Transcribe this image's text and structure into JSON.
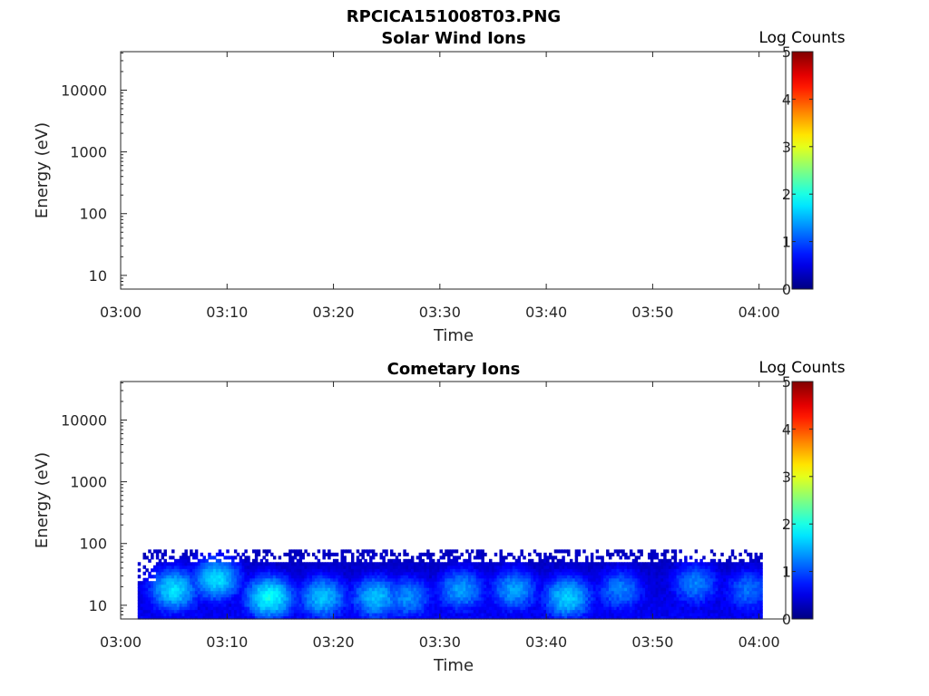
{
  "figure_title": "RPCICA151008T03.PNG",
  "chart_data": [
    {
      "type": "heatmap",
      "title": "Solar Wind Ions",
      "xlabel": "Time",
      "ylabel": "Energy (eV)",
      "y_scale": "log",
      "ylim_eV": [
        6,
        42000
      ],
      "x_ticks": [
        "03:00",
        "03:10",
        "03:20",
        "03:30",
        "03:40",
        "03:50",
        "04:00"
      ],
      "y_ticks": [
        10,
        100,
        1000,
        10000
      ],
      "y_tick_labels": [
        "10",
        "100",
        "1000",
        "10000"
      ],
      "xlim_minutes": [
        0,
        62.5
      ],
      "colorbar": {
        "label": "Log Counts",
        "min": 0,
        "max": 5,
        "ticks": [
          "0",
          "1",
          "2",
          "3",
          "4",
          "5"
        ],
        "colormap": "jet"
      },
      "data_extent": "none (empty panel)"
    },
    {
      "type": "heatmap",
      "title": "Cometary Ions",
      "xlabel": "Time",
      "ylabel": "Energy (eV)",
      "y_scale": "log",
      "ylim_eV": [
        6,
        42000
      ],
      "x_ticks": [
        "03:00",
        "03:10",
        "03:20",
        "03:30",
        "03:40",
        "03:50",
        "04:00"
      ],
      "y_ticks": [
        10,
        100,
        1000,
        10000
      ],
      "y_tick_labels": [
        "10",
        "100",
        "1000",
        "10000"
      ],
      "xlim_minutes": [
        0,
        62.5
      ],
      "colorbar": {
        "label": "Log Counts",
        "min": 0,
        "max": 5,
        "ticks": [
          "0",
          "1",
          "2",
          "3",
          "4",
          "5"
        ],
        "colormap": "jet"
      },
      "data_extent": {
        "time_start_min": 1.6,
        "time_end_min": 60.3,
        "energy_min_eV": 6,
        "energy_max_eV": 80
      },
      "intensity_peaks": [
        {
          "time_min": 5,
          "energy_eV": 20,
          "log_counts": 2.0
        },
        {
          "time_min": 9,
          "energy_eV": 30,
          "log_counts": 2.2
        },
        {
          "time_min": 14,
          "energy_eV": 15,
          "log_counts": 2.1
        },
        {
          "time_min": 19,
          "energy_eV": 15,
          "log_counts": 1.7
        },
        {
          "time_min": 24,
          "energy_eV": 15,
          "log_counts": 1.7
        },
        {
          "time_min": 27,
          "energy_eV": 15,
          "log_counts": 1.4
        },
        {
          "time_min": 32,
          "energy_eV": 20,
          "log_counts": 1.6
        },
        {
          "time_min": 37,
          "energy_eV": 20,
          "log_counts": 1.6
        },
        {
          "time_min": 42,
          "energy_eV": 15,
          "log_counts": 1.8
        },
        {
          "time_min": 47,
          "energy_eV": 20,
          "log_counts": 1.4
        },
        {
          "time_min": 54,
          "energy_eV": 25,
          "log_counts": 1.5
        },
        {
          "time_min": 59,
          "energy_eV": 20,
          "log_counts": 1.3
        }
      ]
    }
  ]
}
